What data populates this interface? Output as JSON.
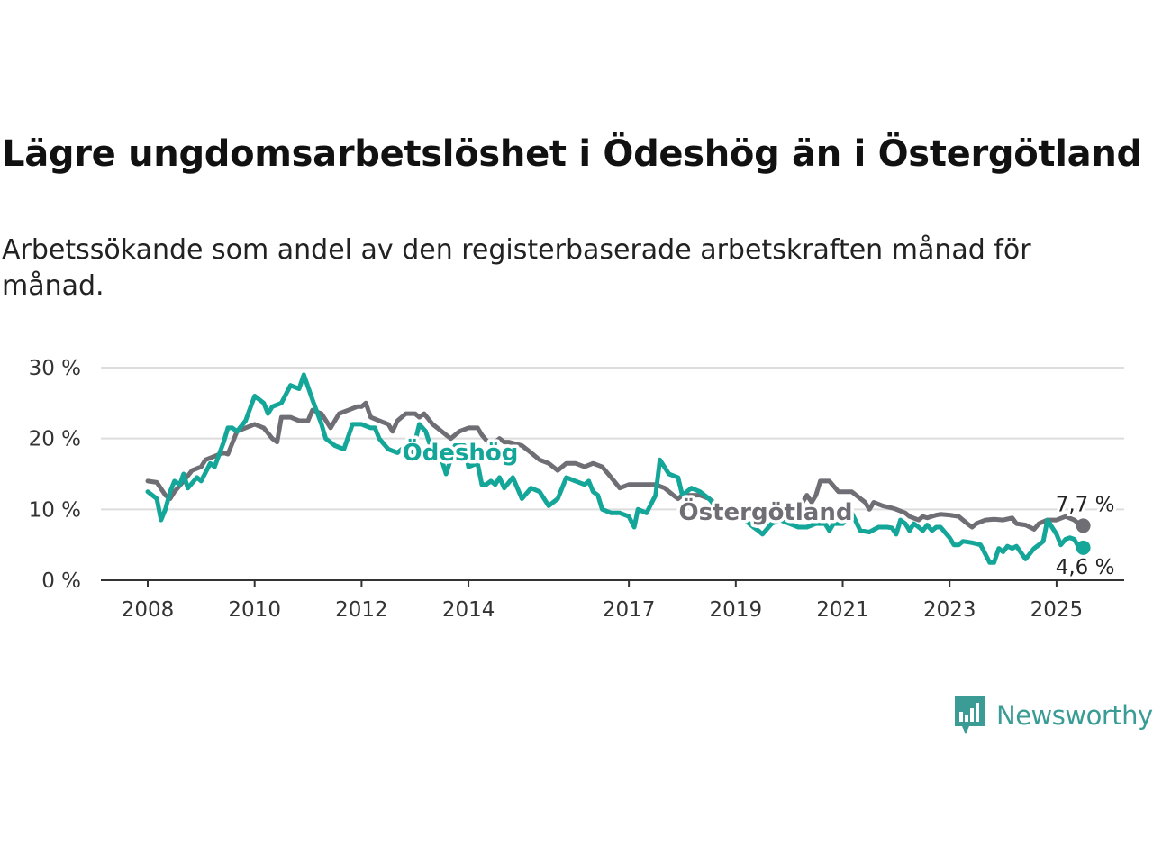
{
  "title": "Lägre ungdomsarbetslöshet i Ödeshög än i Östergötland",
  "subtitle": "Arbetssökande som andel av den registerbaserade arbetskraften månad för månad.",
  "brand": "Newsworthy",
  "colors": {
    "odeshog": "#13a699",
    "ostergotland": "#6e6e74",
    "grid": "#dddddd",
    "axis": "#333333"
  },
  "chart_data": {
    "type": "line",
    "ylim": [
      0,
      30
    ],
    "yticks": [
      0,
      10,
      20,
      30
    ],
    "ytick_labels": [
      "0 %",
      "10 %",
      "20 %",
      "30 %"
    ],
    "xticks": [
      2008,
      2010,
      2012,
      2014,
      2017,
      2019,
      2021,
      2023,
      2025
    ],
    "xtick_labels": [
      "2008",
      "2010",
      "2012",
      "2014",
      "2017",
      "2019",
      "2021",
      "2023",
      "2025"
    ],
    "grid": true,
    "series": [
      {
        "name": "Ödeshög",
        "color": "#13a699",
        "end_label": "4,6 %",
        "points": [
          [
            2008.0,
            12.5
          ],
          [
            2008.17,
            11.5
          ],
          [
            2008.25,
            8.5
          ],
          [
            2008.33,
            10
          ],
          [
            2008.42,
            12.5
          ],
          [
            2008.5,
            14
          ],
          [
            2008.6,
            13.5
          ],
          [
            2008.67,
            15
          ],
          [
            2008.75,
            13
          ],
          [
            2008.92,
            14.5
          ],
          [
            2009.0,
            14
          ],
          [
            2009.17,
            16.5
          ],
          [
            2009.25,
            16
          ],
          [
            2009.42,
            19.5
          ],
          [
            2009.5,
            21.5
          ],
          [
            2009.58,
            21.5
          ],
          [
            2009.67,
            21
          ],
          [
            2009.83,
            22.5
          ],
          [
            2010.0,
            26
          ],
          [
            2010.17,
            25
          ],
          [
            2010.25,
            23.5
          ],
          [
            2010.33,
            24.5
          ],
          [
            2010.5,
            25
          ],
          [
            2010.67,
            27.5
          ],
          [
            2010.83,
            27
          ],
          [
            2010.92,
            29
          ],
          [
            2011.08,
            25.5
          ],
          [
            2011.25,
            22
          ],
          [
            2011.33,
            20
          ],
          [
            2011.5,
            19
          ],
          [
            2011.67,
            18.5
          ],
          [
            2011.83,
            22
          ],
          [
            2012.0,
            22
          ],
          [
            2012.17,
            21.5
          ],
          [
            2012.25,
            21.5
          ],
          [
            2012.33,
            20
          ],
          [
            2012.5,
            18.5
          ],
          [
            2012.67,
            18
          ],
          [
            2012.75,
            18.5
          ],
          [
            2012.92,
            17
          ],
          [
            2013.0,
            19.5
          ],
          [
            2013.08,
            22
          ],
          [
            2013.2,
            21
          ],
          [
            2013.33,
            18
          ],
          [
            2013.5,
            17
          ],
          [
            2013.58,
            15
          ],
          [
            2013.75,
            19
          ],
          [
            2013.92,
            19
          ],
          [
            2014.0,
            16
          ],
          [
            2014.17,
            16.5
          ],
          [
            2014.25,
            13.5
          ],
          [
            2014.33,
            13.5
          ],
          [
            2014.42,
            14
          ],
          [
            2014.5,
            13.5
          ],
          [
            2014.58,
            14.5
          ],
          [
            2014.67,
            13
          ],
          [
            2014.83,
            14.5
          ],
          [
            2015.0,
            11.5
          ],
          [
            2015.17,
            13
          ],
          [
            2015.33,
            12.5
          ],
          [
            2015.5,
            10.5
          ],
          [
            2015.67,
            11.5
          ],
          [
            2015.83,
            14.5
          ],
          [
            2016.0,
            14
          ],
          [
            2016.17,
            13.5
          ],
          [
            2016.25,
            14
          ],
          [
            2016.33,
            12.5
          ],
          [
            2016.42,
            12
          ],
          [
            2016.5,
            10
          ],
          [
            2016.67,
            9.5
          ],
          [
            2016.83,
            9.5
          ],
          [
            2017.0,
            9
          ],
          [
            2017.1,
            7.5
          ],
          [
            2017.17,
            10
          ],
          [
            2017.33,
            9.5
          ],
          [
            2017.5,
            12
          ],
          [
            2017.58,
            17
          ],
          [
            2017.75,
            15
          ],
          [
            2017.92,
            14.5
          ],
          [
            2018.0,
            12
          ],
          [
            2018.17,
            13
          ],
          [
            2018.33,
            12.5
          ],
          [
            2018.5,
            11.5
          ],
          [
            2018.67,
            10
          ],
          [
            2018.83,
            9.5
          ],
          [
            2019.0,
            9
          ],
          [
            2019.17,
            8.5
          ],
          [
            2019.33,
            7.5
          ],
          [
            2019.42,
            7
          ],
          [
            2019.5,
            6.5
          ],
          [
            2019.67,
            8
          ],
          [
            2019.83,
            8.5
          ],
          [
            2020.0,
            8
          ],
          [
            2020.17,
            7.5
          ],
          [
            2020.33,
            7.5
          ],
          [
            2020.5,
            8
          ],
          [
            2020.67,
            8
          ],
          [
            2020.75,
            7
          ],
          [
            2020.83,
            8
          ],
          [
            2021.0,
            8
          ],
          [
            2021.17,
            9.5
          ],
          [
            2021.33,
            7
          ],
          [
            2021.5,
            6.8
          ],
          [
            2021.67,
            7.5
          ],
          [
            2021.83,
            7.5
          ],
          [
            2021.92,
            7.4
          ],
          [
            2022.0,
            6.5
          ],
          [
            2022.08,
            8.5
          ],
          [
            2022.17,
            8
          ],
          [
            2022.25,
            7
          ],
          [
            2022.33,
            8
          ],
          [
            2022.42,
            7.5
          ],
          [
            2022.5,
            7
          ],
          [
            2022.58,
            7.8
          ],
          [
            2022.67,
            7
          ],
          [
            2022.75,
            7.5
          ],
          [
            2022.83,
            7.5
          ],
          [
            2023.0,
            6
          ],
          [
            2023.08,
            5
          ],
          [
            2023.17,
            5
          ],
          [
            2023.25,
            5.5
          ],
          [
            2023.42,
            5.3
          ],
          [
            2023.58,
            5
          ],
          [
            2023.75,
            2.5
          ],
          [
            2023.83,
            2.5
          ],
          [
            2023.92,
            4.5
          ],
          [
            2024.0,
            4
          ],
          [
            2024.08,
            4.8
          ],
          [
            2024.17,
            4.5
          ],
          [
            2024.25,
            4.8
          ],
          [
            2024.42,
            3
          ],
          [
            2024.58,
            4.5
          ],
          [
            2024.67,
            5
          ],
          [
            2024.75,
            5.5
          ],
          [
            2024.83,
            8.5
          ],
          [
            2025.0,
            6.5
          ],
          [
            2025.08,
            5
          ],
          [
            2025.17,
            5.8
          ],
          [
            2025.25,
            6
          ],
          [
            2025.33,
            5.8
          ],
          [
            2025.42,
            4.6
          ],
          [
            2025.5,
            4.6
          ]
        ]
      },
      {
        "name": "Östergötland",
        "color": "#6e6e74",
        "end_label": "7,7 %",
        "points": [
          [
            2008.0,
            14
          ],
          [
            2008.17,
            13.8
          ],
          [
            2008.33,
            12
          ],
          [
            2008.42,
            11.5
          ],
          [
            2008.5,
            12.5
          ],
          [
            2008.67,
            14
          ],
          [
            2008.83,
            15.5
          ],
          [
            2009.0,
            16
          ],
          [
            2009.08,
            17
          ],
          [
            2009.25,
            17.5
          ],
          [
            2009.42,
            18
          ],
          [
            2009.5,
            17.8
          ],
          [
            2009.67,
            21
          ],
          [
            2009.83,
            21.5
          ],
          [
            2010.0,
            22
          ],
          [
            2010.17,
            21.5
          ],
          [
            2010.33,
            20
          ],
          [
            2010.42,
            19.5
          ],
          [
            2010.5,
            23
          ],
          [
            2010.67,
            23
          ],
          [
            2010.83,
            22.5
          ],
          [
            2011.0,
            22.5
          ],
          [
            2011.08,
            24
          ],
          [
            2011.25,
            23.5
          ],
          [
            2011.42,
            21.5
          ],
          [
            2011.58,
            23.5
          ],
          [
            2011.75,
            24
          ],
          [
            2011.92,
            24.5
          ],
          [
            2012.0,
            24.5
          ],
          [
            2012.08,
            25
          ],
          [
            2012.17,
            23
          ],
          [
            2012.33,
            22.5
          ],
          [
            2012.5,
            22
          ],
          [
            2012.58,
            21
          ],
          [
            2012.67,
            22.5
          ],
          [
            2012.83,
            23.5
          ],
          [
            2013.0,
            23.5
          ],
          [
            2013.08,
            23
          ],
          [
            2013.17,
            23.5
          ],
          [
            2013.33,
            22
          ],
          [
            2013.5,
            21
          ],
          [
            2013.58,
            20.5
          ],
          [
            2013.67,
            20
          ],
          [
            2013.83,
            21
          ],
          [
            2014.0,
            21.5
          ],
          [
            2014.17,
            21.5
          ],
          [
            2014.25,
            20.5
          ],
          [
            2014.42,
            19
          ],
          [
            2014.58,
            20
          ],
          [
            2014.67,
            19.5
          ],
          [
            2014.75,
            19.5
          ],
          [
            2015.0,
            19
          ],
          [
            2015.17,
            18
          ],
          [
            2015.33,
            17
          ],
          [
            2015.5,
            16.5
          ],
          [
            2015.67,
            15.5
          ],
          [
            2015.83,
            16.5
          ],
          [
            2016.0,
            16.5
          ],
          [
            2016.17,
            16
          ],
          [
            2016.33,
            16.5
          ],
          [
            2016.5,
            16
          ],
          [
            2016.67,
            14.5
          ],
          [
            2016.83,
            13
          ],
          [
            2017.0,
            13.5
          ],
          [
            2017.17,
            13.5
          ],
          [
            2017.33,
            13.5
          ],
          [
            2017.5,
            13.5
          ],
          [
            2017.67,
            13
          ],
          [
            2017.83,
            12
          ],
          [
            2017.92,
            11.5
          ],
          [
            2018.0,
            12
          ],
          [
            2018.17,
            12
          ],
          [
            2018.33,
            12
          ],
          [
            2018.5,
            11.5
          ],
          [
            2018.67,
            10.5
          ],
          [
            2018.83,
            10
          ],
          [
            2019.0,
            10
          ],
          [
            2019.17,
            9.5
          ],
          [
            2019.33,
            9
          ],
          [
            2019.5,
            9
          ],
          [
            2019.67,
            9
          ],
          [
            2019.83,
            9.5
          ],
          [
            2020.0,
            10
          ],
          [
            2020.17,
            10
          ],
          [
            2020.33,
            12
          ],
          [
            2020.42,
            11
          ],
          [
            2020.5,
            12
          ],
          [
            2020.58,
            14
          ],
          [
            2020.75,
            14
          ],
          [
            2020.92,
            12.5
          ],
          [
            2021.0,
            12.5
          ],
          [
            2021.17,
            12.5
          ],
          [
            2021.25,
            12
          ],
          [
            2021.42,
            11
          ],
          [
            2021.5,
            10
          ],
          [
            2021.58,
            11
          ],
          [
            2021.75,
            10.5
          ],
          [
            2021.92,
            10.2
          ],
          [
            2022.0,
            10
          ],
          [
            2022.17,
            9.5
          ],
          [
            2022.25,
            9
          ],
          [
            2022.42,
            8.5
          ],
          [
            2022.5,
            9
          ],
          [
            2022.58,
            8.8
          ],
          [
            2022.75,
            9.2
          ],
          [
            2022.83,
            9.3
          ],
          [
            2023.0,
            9.2
          ],
          [
            2023.17,
            9
          ],
          [
            2023.33,
            8
          ],
          [
            2023.42,
            7.5
          ],
          [
            2023.5,
            8
          ],
          [
            2023.67,
            8.5
          ],
          [
            2023.83,
            8.6
          ],
          [
            2024.0,
            8.5
          ],
          [
            2024.17,
            8.8
          ],
          [
            2024.25,
            8
          ],
          [
            2024.42,
            7.8
          ],
          [
            2024.58,
            7.2
          ],
          [
            2024.67,
            8
          ],
          [
            2024.83,
            8.5
          ],
          [
            2025.0,
            8.5
          ],
          [
            2025.17,
            9
          ],
          [
            2025.33,
            8.5
          ],
          [
            2025.42,
            8
          ],
          [
            2025.5,
            7.7
          ]
        ]
      }
    ]
  }
}
